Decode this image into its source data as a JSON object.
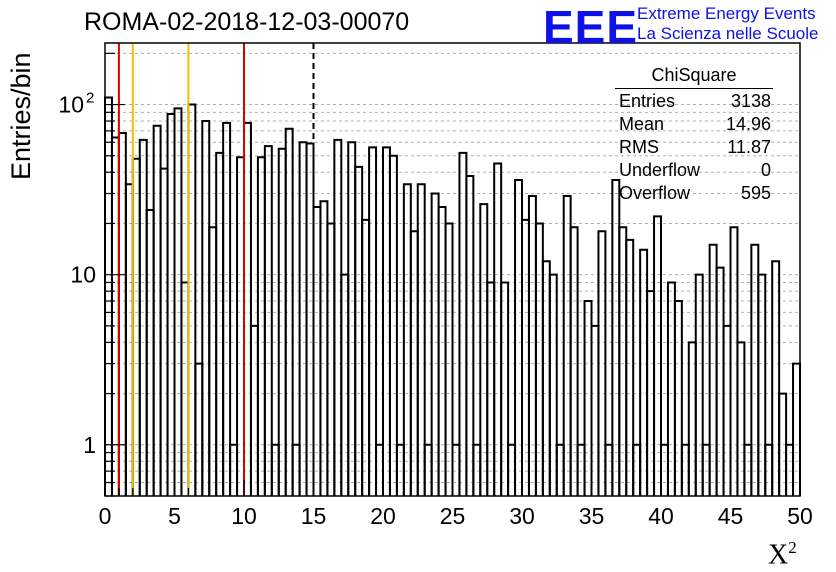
{
  "title": "ROMA-02-2018-12-03-00070",
  "logo": {
    "mark": "EEE",
    "line1": "Extreme Energy Events",
    "line2": "La Scienza nelle Scuole"
  },
  "stats_box": {
    "title": "ChiSquare",
    "rows": [
      {
        "label": "Entries",
        "value": "3138"
      },
      {
        "label": "Mean",
        "value": "14.96"
      },
      {
        "label": "RMS",
        "value": "11.87"
      },
      {
        "label": "Underflow",
        "value": "0"
      },
      {
        "label": "Overflow",
        "value": "595"
      }
    ]
  },
  "chart_data": {
    "type": "bar",
    "style": "step histogram",
    "title": "ROMA-02-2018-12-03-00070",
    "xlabel": "X",
    "xlabel_superscript": "2",
    "ylabel": "Entries/bin",
    "xlim": [
      0,
      50
    ],
    "ylim": [
      0.5,
      230
    ],
    "yscale": "log",
    "grid": "y",
    "bin_width": 0.5,
    "x_ticks": [
      "0",
      "5",
      "10",
      "15",
      "20",
      "25",
      "30",
      "35",
      "40",
      "45",
      "50"
    ],
    "y_ticks": [
      {
        "value": 1,
        "label": "1"
      },
      {
        "value": 10,
        "label": "10"
      },
      {
        "value": 100,
        "label": "10",
        "exponent": "2"
      }
    ],
    "series": [
      {
        "values": [
          110,
          64,
          68,
          34,
          48,
          62,
          24,
          75,
          42,
          88,
          95,
          9,
          100,
          3,
          80,
          19,
          52,
          78,
          1,
          49,
          78,
          5,
          49,
          57,
          1,
          55,
          72,
          1,
          60,
          59,
          25,
          27,
          20,
          62,
          10,
          60,
          43,
          21,
          56,
          1,
          56,
          50,
          1,
          34,
          18,
          34,
          1,
          30,
          25,
          20,
          1,
          52,
          38,
          1,
          26,
          9,
          45,
          9,
          1,
          36,
          21,
          29,
          20,
          12,
          10,
          1,
          29,
          19,
          1,
          7,
          5,
          18,
          1,
          36,
          19,
          16,
          1,
          14,
          8,
          22,
          1,
          9,
          7,
          1,
          4,
          10,
          1,
          15,
          11,
          5,
          19,
          4,
          1,
          15,
          10,
          1,
          12,
          2,
          1,
          3
        ]
      }
    ],
    "vertical_markers": [
      {
        "x": 1,
        "color": "#e00000",
        "style": "solid"
      },
      {
        "x": 2,
        "color": "#f0c000",
        "style": "solid"
      },
      {
        "x": 6,
        "color": "#f0c000",
        "style": "solid"
      },
      {
        "x": 10,
        "color": "#e00000",
        "style": "solid"
      },
      {
        "x": 15,
        "color": "#000000",
        "style": "dashed"
      }
    ]
  }
}
